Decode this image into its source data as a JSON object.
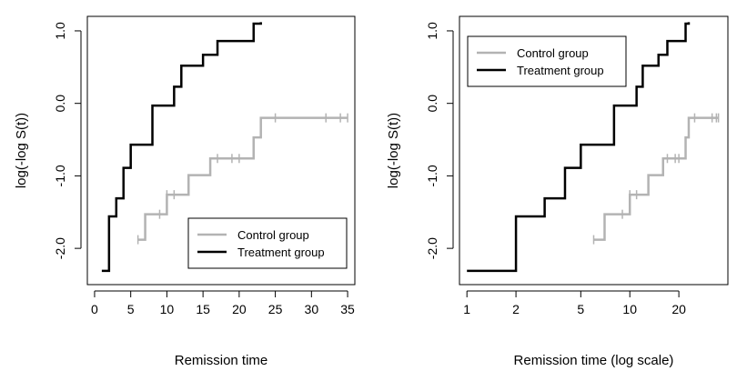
{
  "colors": {
    "control": "#b3b3b3",
    "treatment": "#000000",
    "axis": "#000000",
    "background": "#ffffff"
  },
  "chart_data": [
    {
      "type": "line",
      "step": true,
      "xscale": "linear",
      "xlabel": "Remission time",
      "ylabel": "log(-log S(t))",
      "xlim": [
        -1,
        36
      ],
      "ylim": [
        -2.5,
        1.2
      ],
      "xticks": [
        0,
        5,
        10,
        15,
        20,
        25,
        30,
        35
      ],
      "xtick_labels": [
        "0",
        "5",
        "10",
        "15",
        "20",
        "25",
        "30",
        "35"
      ],
      "yticks": [
        -2.0,
        -1.0,
        0.0,
        1.0
      ],
      "ytick_labels": [
        "-2.0",
        "-1.0",
        "0.0",
        "1.0"
      ],
      "grid": false,
      "legend_position": "bottom-right",
      "series": [
        {
          "name": "Control group",
          "color_key": "control",
          "x": [
            6,
            7,
            10,
            13,
            16,
            22,
            23,
            35
          ],
          "y": [
            -1.88,
            -1.53,
            -1.26,
            -0.99,
            -0.76,
            -0.47,
            -0.2,
            -0.2
          ],
          "censored": [
            6,
            9,
            10,
            11,
            17,
            19,
            20,
            25,
            32,
            34,
            35
          ]
        },
        {
          "name": "Treatment group",
          "color_key": "treatment",
          "x": [
            1,
            2,
            3,
            4,
            5,
            8,
            11,
            12,
            15,
            17,
            22,
            23
          ],
          "y": [
            -2.31,
            -1.56,
            -1.31,
            -0.89,
            -0.57,
            -0.03,
            0.23,
            0.52,
            0.67,
            0.86,
            1.1,
            1.12
          ],
          "censored": []
        }
      ]
    },
    {
      "type": "line",
      "step": true,
      "xscale": "log",
      "xlabel": "Remission time (log scale)",
      "ylabel": "log(-log S(t))",
      "xlim": [
        0.9,
        40
      ],
      "ylim": [
        -2.5,
        1.2
      ],
      "xticks": [
        1,
        2,
        5,
        10,
        20
      ],
      "xtick_labels": [
        "1",
        "2",
        "5",
        "10",
        "20"
      ],
      "yticks": [
        -2.0,
        -1.0,
        0.0,
        1.0
      ],
      "ytick_labels": [
        "-2.0",
        "-1.0",
        "0.0",
        "1.0"
      ],
      "grid": false,
      "legend_position": "top-left",
      "series": [
        {
          "name": "Control group",
          "color_key": "control",
          "x": [
            6,
            7,
            10,
            13,
            16,
            22,
            23,
            35
          ],
          "y": [
            -1.88,
            -1.53,
            -1.26,
            -0.99,
            -0.76,
            -0.47,
            -0.2,
            -0.2
          ],
          "censored": [
            6,
            9,
            10,
            11,
            17,
            19,
            20,
            25,
            32,
            34,
            35
          ]
        },
        {
          "name": "Treatment group",
          "color_key": "treatment",
          "x": [
            1,
            2,
            3,
            4,
            5,
            8,
            11,
            12,
            15,
            17,
            22,
            23
          ],
          "y": [
            -2.31,
            -1.56,
            -1.31,
            -0.89,
            -0.57,
            -0.03,
            0.23,
            0.52,
            0.67,
            0.86,
            1.1,
            1.12
          ],
          "censored": []
        }
      ]
    }
  ]
}
